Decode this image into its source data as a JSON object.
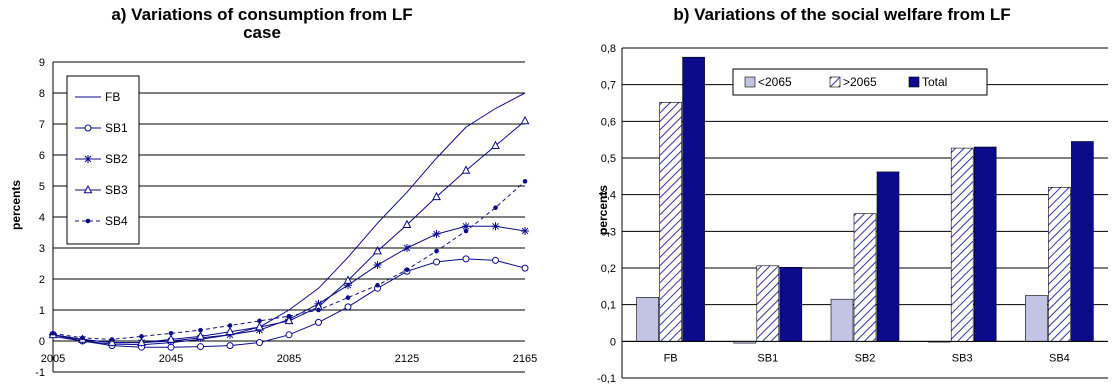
{
  "colors": {
    "navy": "#0b0b8c",
    "light": "#c3c3e6",
    "hatch": "#3333a0",
    "dashed": "#15157a"
  },
  "chart_data": [
    {
      "type": "line",
      "title": "a) Variations of consumption from LF case",
      "title_lines": [
        "a) Variations of consumption from LF",
        "case"
      ],
      "ylabel": "percents",
      "xlabel": "",
      "ylim": [
        -1,
        9
      ],
      "yticks": [
        "-1",
        "0",
        "1",
        "2",
        "3",
        "4",
        "5",
        "6",
        "7",
        "8",
        "9"
      ],
      "xlim": [
        2005,
        2165
      ],
      "xticks": [
        "2005",
        "2045",
        "2085",
        "2125",
        "2165"
      ],
      "grid": "horizontal",
      "legend_position": "top-left",
      "x": [
        2005,
        2015,
        2025,
        2035,
        2045,
        2055,
        2065,
        2075,
        2085,
        2095,
        2105,
        2115,
        2125,
        2135,
        2145,
        2155,
        2165
      ],
      "series": [
        {
          "name": "FB",
          "marker": "none",
          "dash": false,
          "values": [
            0.15,
            0.0,
            -0.1,
            -0.12,
            -0.05,
            0.05,
            0.2,
            0.45,
            1.0,
            1.7,
            2.7,
            3.8,
            4.8,
            5.9,
            6.9,
            7.5,
            8.0
          ]
        },
        {
          "name": "SB1",
          "marker": "circle",
          "dash": false,
          "values": [
            0.2,
            0.0,
            -0.15,
            -0.2,
            -0.2,
            -0.18,
            -0.15,
            -0.05,
            0.2,
            0.6,
            1.1,
            1.7,
            2.25,
            2.55,
            2.65,
            2.6,
            2.35
          ]
        },
        {
          "name": "SB2",
          "marker": "star",
          "dash": false,
          "values": [
            0.2,
            0.05,
            -0.05,
            -0.05,
            0.0,
            0.1,
            0.2,
            0.35,
            0.7,
            1.2,
            1.8,
            2.45,
            3.0,
            3.45,
            3.7,
            3.7,
            3.55
          ]
        },
        {
          "name": "SB3",
          "marker": "triangle",
          "dash": false,
          "values": [
            0.2,
            0.05,
            -0.05,
            -0.05,
            0.05,
            0.15,
            0.3,
            0.45,
            0.65,
            1.1,
            1.95,
            2.9,
            3.75,
            4.65,
            5.5,
            6.3,
            7.1
          ]
        },
        {
          "name": "SB4",
          "marker": "dot",
          "dash": true,
          "values": [
            0.25,
            0.1,
            0.05,
            0.15,
            0.25,
            0.35,
            0.5,
            0.65,
            0.8,
            1.0,
            1.4,
            1.8,
            2.3,
            2.9,
            3.55,
            4.3,
            5.15
          ]
        }
      ]
    },
    {
      "type": "bar",
      "title": "b) Variations of the social welfare from LF",
      "ylabel": "percents",
      "xlabel": "",
      "ylim": [
        -0.1,
        0.8
      ],
      "yticks": [
        "-0,1",
        "0",
        "0,1",
        "0,2",
        "0,3",
        "0,4",
        "0,5",
        "0,6",
        "0,7",
        "0,8"
      ],
      "categories": [
        "FB",
        "SB1",
        "SB2",
        "SB3",
        "SB4"
      ],
      "grid": "horizontal",
      "legend_position": "top-center",
      "series": [
        {
          "name": "<2065",
          "fill": "light",
          "values": [
            0.12,
            -0.005,
            0.115,
            0.0,
            0.125
          ]
        },
        {
          "name": ">2065",
          "fill": "hatched",
          "values": [
            0.652,
            0.206,
            0.348,
            0.527,
            0.42
          ]
        },
        {
          "name": "Total",
          "fill": "navy",
          "values": [
            0.775,
            0.202,
            0.462,
            0.53,
            0.545
          ]
        }
      ]
    }
  ]
}
